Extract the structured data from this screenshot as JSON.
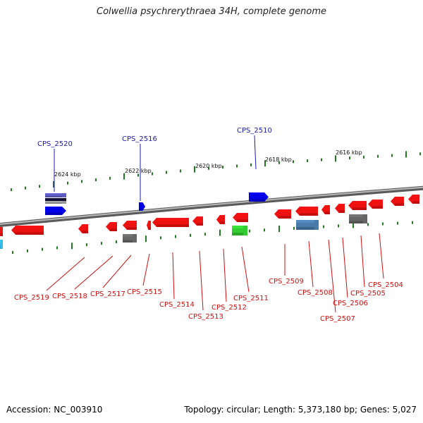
{
  "title": "Colwellia psychrerythraea 34H, complete genome",
  "footer": {
    "accession": "Accession: NC_003910",
    "summary": "Topology: circular; Length: 5,373,180 bp; Genes: 5,027"
  },
  "colors": {
    "backbone": "#7a7a7a",
    "tick": "#1f7a1f",
    "forward_gene": "#0000e6",
    "reverse_gene": "#ee1111",
    "rna_gene": "#33cc33",
    "pseudo_gene": "#666666",
    "top_label": "#1b1bb0",
    "bottom_label": "#cc1111"
  },
  "kbp_labels": [
    "2624 kbp",
    "2622 kbp",
    "2620 kbp",
    "2618 kbp",
    "2616 kbp"
  ],
  "top_labels": [
    "CPS_2520",
    "CPS_2516",
    "CPS_2510"
  ],
  "bottom_labels": [
    "CPS_2519",
    "CPS_2518",
    "CPS_2517",
    "CPS_2515",
    "CPS_2514",
    "CPS_2513",
    "CPS_2512",
    "CPS_2511",
    "CPS_2509",
    "CPS_2508",
    "CPS_2507",
    "CPS_2506",
    "CPS_2505",
    "CPS_2504"
  ]
}
